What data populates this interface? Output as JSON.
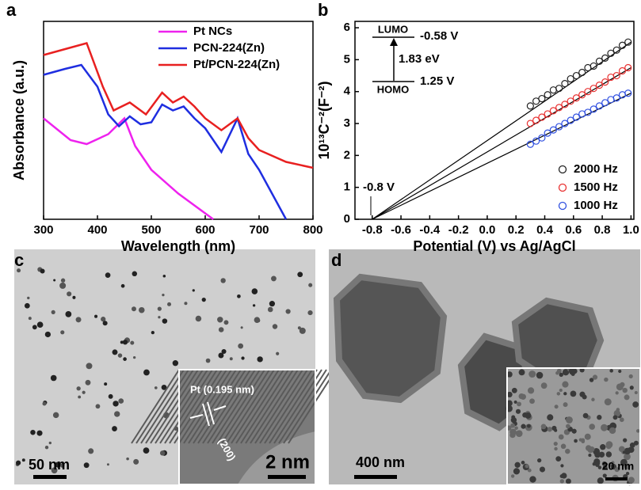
{
  "chart_data": [
    {
      "type": "line",
      "label": "a",
      "xlabel": "Wavelength (nm)",
      "ylabel": "Absorbance (a.u.)",
      "xlim": [
        300,
        800
      ],
      "xticks": [
        300,
        400,
        500,
        600,
        700,
        800
      ],
      "ylim": [
        0,
        1
      ],
      "legend": "upper right",
      "series": [
        {
          "name": "Pt NCs",
          "color": "#ee22ee",
          "x": [
            300,
            350,
            380,
            420,
            450,
            470,
            500,
            550,
            600,
            615
          ],
          "values": [
            0.51,
            0.4,
            0.38,
            0.43,
            0.51,
            0.37,
            0.25,
            0.13,
            0.03,
            0.0
          ]
        },
        {
          "name": "PCN-224(Zn)",
          "color": "#1f2ee0",
          "x": [
            300,
            340,
            370,
            400,
            420,
            440,
            460,
            480,
            500,
            520,
            540,
            560,
            580,
            600,
            630,
            660,
            680,
            700,
            720,
            750
          ],
          "values": [
            0.73,
            0.76,
            0.78,
            0.67,
            0.53,
            0.47,
            0.52,
            0.48,
            0.49,
            0.58,
            0.55,
            0.57,
            0.51,
            0.46,
            0.34,
            0.51,
            0.33,
            0.25,
            0.15,
            0.0
          ]
        },
        {
          "name": "Pt/PCN-224(Zn)",
          "color": "#e82020",
          "x": [
            300,
            340,
            380,
            410,
            430,
            460,
            490,
            520,
            540,
            560,
            580,
            600,
            630,
            660,
            680,
            700,
            750,
            800
          ],
          "values": [
            0.83,
            0.86,
            0.89,
            0.67,
            0.55,
            0.59,
            0.53,
            0.64,
            0.59,
            0.62,
            0.57,
            0.51,
            0.45,
            0.51,
            0.41,
            0.35,
            0.29,
            0.26
          ]
        }
      ]
    },
    {
      "type": "scatter",
      "label": "b",
      "xlabel": "Potential (V) vs Ag/AgCl",
      "ylabel": "10¹³C⁻²(F⁻²)",
      "xlim": [
        -0.92,
        1.02
      ],
      "xticks": [
        -0.8,
        -0.6,
        -0.4,
        -0.2,
        {
          "value": 0,
          "label": "0.0"
        },
        0.2,
        0.4,
        0.6,
        0.8,
        {
          "value": 1,
          "label": "1.0"
        }
      ],
      "ylim": [
        0,
        6.2
      ],
      "yticks": [
        0,
        1,
        2,
        3,
        4,
        5,
        6
      ],
      "legend": "lower right",
      "x": [
        0.3,
        0.34,
        0.38,
        0.42,
        0.46,
        0.5,
        0.54,
        0.58,
        0.62,
        0.66,
        0.7,
        0.74,
        0.78,
        0.82,
        0.86,
        0.9,
        0.94,
        0.98
      ],
      "series": [
        {
          "name": "2000 Hz",
          "color": "#222222",
          "values": [
            3.55,
            3.7,
            3.78,
            3.9,
            4.05,
            4.1,
            4.25,
            4.4,
            4.5,
            4.6,
            4.75,
            4.8,
            4.95,
            5.05,
            5.2,
            5.3,
            5.45,
            5.55
          ]
        },
        {
          "name": "1500 Hz",
          "color": "#e83030",
          "values": [
            3.0,
            3.1,
            3.2,
            3.3,
            3.4,
            3.5,
            3.6,
            3.7,
            3.8,
            3.9,
            4.0,
            4.1,
            4.2,
            4.3,
            4.45,
            4.5,
            4.65,
            4.75
          ]
        },
        {
          "name": "1000 Hz",
          "color": "#3050e0",
          "values": [
            2.35,
            2.45,
            2.55,
            2.7,
            2.8,
            2.9,
            3.0,
            3.1,
            3.2,
            3.3,
            3.35,
            3.45,
            3.55,
            3.65,
            3.75,
            3.8,
            3.9,
            3.95
          ]
        }
      ],
      "fit_lines": [
        {
          "x": [
            -0.8,
            1.0
          ],
          "values": [
            0,
            5.55
          ]
        },
        {
          "x": [
            -0.8,
            1.0
          ],
          "values": [
            0,
            4.75
          ]
        },
        {
          "x": [
            -0.8,
            1.0
          ],
          "values": [
            0,
            3.95
          ]
        }
      ],
      "annotations": [
        "-0.8 V",
        "LUMO",
        "-0.58 V",
        "1.83 eV",
        "HOMO",
        "1.25 V"
      ]
    }
  ],
  "images": [
    {
      "label": "c",
      "scale_bar": "50 nm",
      "inset": {
        "annotation": "Pt (0.195 nm)",
        "plane": "(200)",
        "scale_bar": "2 nm"
      }
    },
    {
      "label": "d",
      "scale_bar": "400 nm",
      "inset": {
        "scale_bar": "20 nm"
      }
    }
  ]
}
